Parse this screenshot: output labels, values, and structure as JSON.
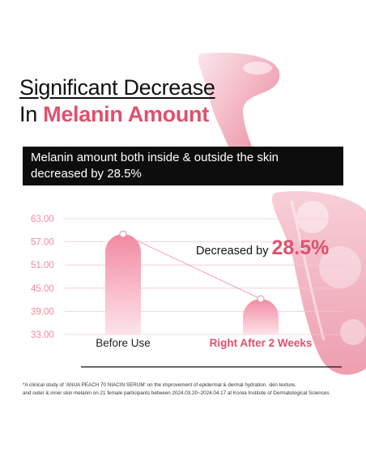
{
  "title": {
    "line1": "Significant Decrease",
    "line2_prefix": "In",
    "line2_accent": "Melanin Amount"
  },
  "banner": {
    "text": "Melanin amount both inside & outside the skin decreased by 28.5%"
  },
  "colors": {
    "accent": "#e0506d",
    "bar_light": "#fde3ea",
    "bar_dark": "#f28aa1",
    "grid": "#f3c8d2",
    "tick": "#f08a9f"
  },
  "chart_data": {
    "type": "bar",
    "categories": [
      "Before Use",
      "Right After 2 Weeks"
    ],
    "values": [
      59.0,
      42.2
    ],
    "ylim": [
      33.0,
      63.0
    ],
    "yticks": [
      "63.00",
      "57.00",
      "51.00",
      "45.00",
      "39.00",
      "33.00"
    ],
    "grid": true,
    "annotation": {
      "prefix": "Decreased by",
      "value": "28.5%"
    }
  },
  "footnote": {
    "line1": "*A clinical study of 'ANUA PEACH 70 NIACIN SERUM' on the improvement of epidermal & dermal hydration, skin texture,",
    "line2": "and outer & inner skin melanin on 21 female participants between 2024.03.20~2024.04.17 at Korea Institute of Dermatological Sciences"
  }
}
